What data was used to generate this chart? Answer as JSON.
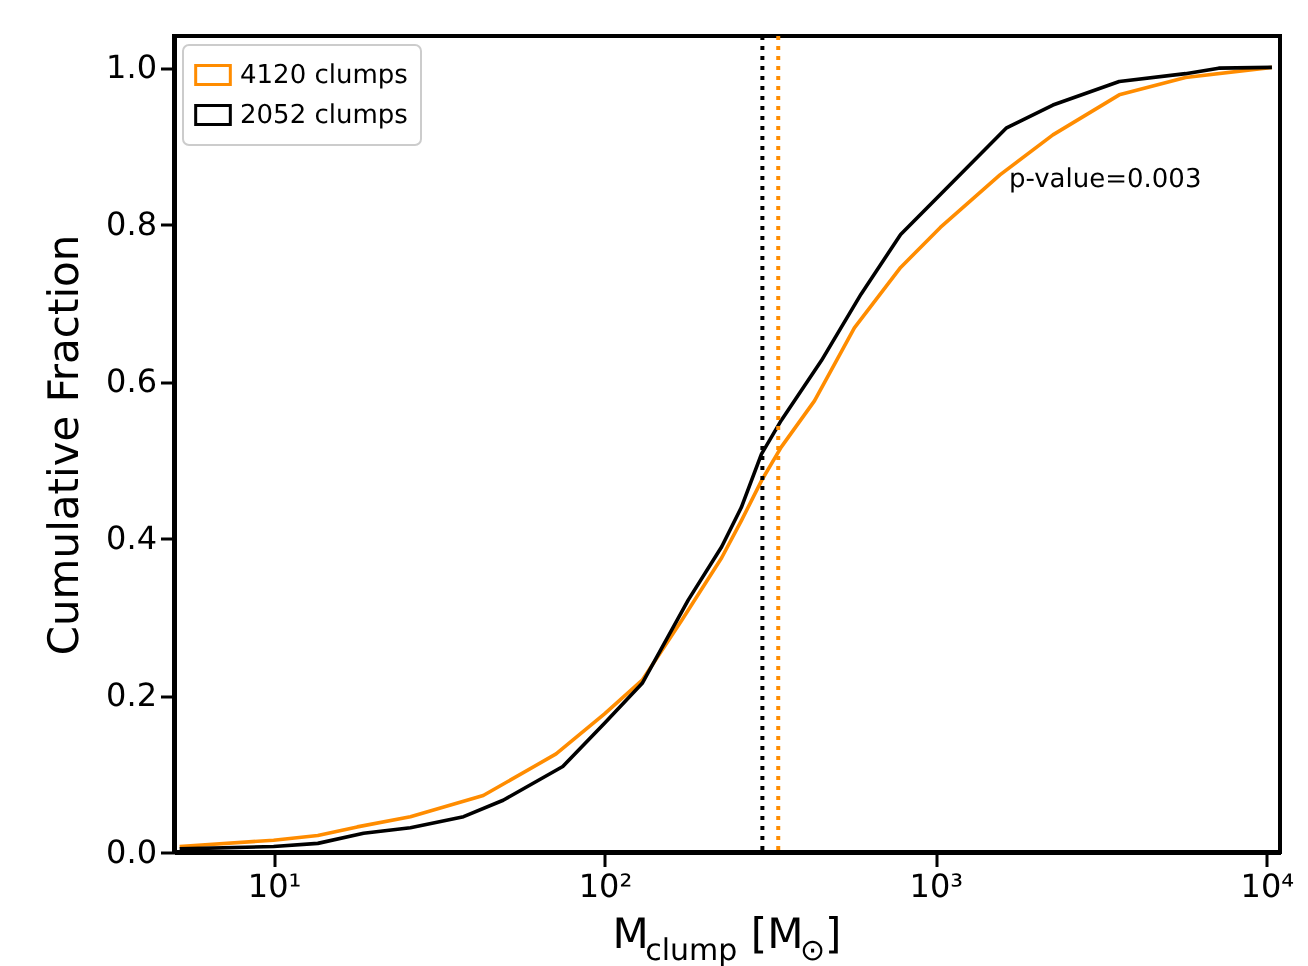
{
  "chart_data": {
    "type": "line",
    "xlabel": "M$_{clump}$ [M$_{⊙}$]",
    "ylabel": "Cumulative Fraction",
    "log": "x",
    "xlim": [
      5,
      11000
    ],
    "ylim": [
      0,
      1.04
    ],
    "xticks": [
      {
        "value": 10,
        "label": "10¹"
      },
      {
        "value": 100,
        "label": "10²"
      },
      {
        "value": 1000,
        "label": "10³"
      },
      {
        "value": 10000,
        "label": "10⁴"
      }
    ],
    "yticks": [
      {
        "value": 0,
        "label": "0.0"
      },
      {
        "value": 0.2,
        "label": "0.2"
      },
      {
        "value": 0.4,
        "label": "0.4"
      },
      {
        "value": 0.6,
        "label": "0.6"
      },
      {
        "value": 0.8,
        "label": "0.8"
      },
      {
        "value": 1.0,
        "label": "1.0"
      }
    ],
    "grid": false,
    "legend": "top left",
    "line_style": "solid",
    "marker": "none",
    "series": [
      {
        "name": "4120 clumps",
        "color": "#ff8c00",
        "x": [
          5.2,
          10,
          13.6,
          17.9,
          25.9,
          43,
          71.4,
          100,
          130,
          171,
          226,
          259,
          298,
          342,
          431,
          569,
          785,
          1035,
          1567,
          2265,
          3594,
          5700,
          10400
        ],
        "values": [
          0.007,
          0.015,
          0.021,
          0.032,
          0.045,
          0.072,
          0.125,
          0.176,
          0.219,
          0.295,
          0.375,
          0.422,
          0.473,
          0.516,
          0.575,
          0.668,
          0.745,
          0.796,
          0.863,
          0.914,
          0.965,
          0.987,
          1.0
        ]
      },
      {
        "name": "2052 clumps",
        "color": "#000000",
        "x": [
          5.2,
          10,
          13.6,
          18.7,
          25.9,
          37.5,
          49.4,
          74.8,
          100,
          130,
          179,
          226,
          259,
          298,
          342,
          452,
          596,
          785,
          1035,
          1641,
          2265,
          3594,
          5700,
          7180,
          10400
        ],
        "values": [
          0.004,
          0.007,
          0.011,
          0.024,
          0.031,
          0.045,
          0.066,
          0.109,
          0.164,
          0.215,
          0.321,
          0.389,
          0.439,
          0.507,
          0.55,
          0.626,
          0.711,
          0.787,
          0.838,
          0.923,
          0.952,
          0.982,
          0.992,
          0.999,
          1.0
        ]
      }
    ],
    "ref_lines": [
      {
        "axis": "x",
        "value": 300,
        "color": "#000000",
        "line_style": "dotted"
      },
      {
        "axis": "x",
        "value": 335,
        "color": "#ff8c00",
        "line_style": "dotted"
      }
    ],
    "annotations": [
      "p-value=0.003"
    ]
  }
}
